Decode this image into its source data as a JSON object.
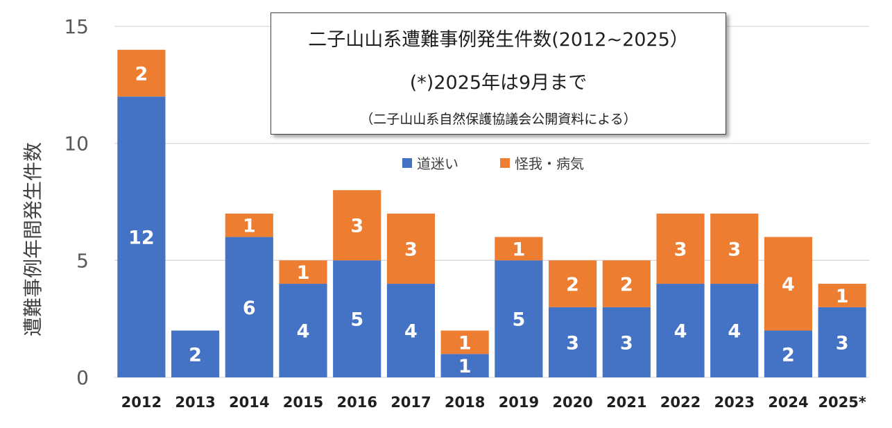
{
  "colors": {
    "walk_lost": "#4472c4",
    "injury_illness": "#ed7d31",
    "grid": "#d9d9d9"
  },
  "title_box": {
    "line1": "二子山山系遭難事例発生件数(2012~2025）",
    "line2": "(*)2025年は9月まで",
    "line3": "（二子山山系自然保護協議会公開資料による）"
  },
  "chart_data": {
    "type": "bar",
    "stacked": true,
    "categories": [
      "2012",
      "2013",
      "2014",
      "2015",
      "2016",
      "2017",
      "2018",
      "2019",
      "2020",
      "2021",
      "2022",
      "2023",
      "2024",
      "2025*"
    ],
    "series": [
      {
        "name": "道迷い",
        "values": [
          12,
          2,
          6,
          4,
          5,
          4,
          1,
          5,
          3,
          3,
          4,
          4,
          2,
          3
        ]
      },
      {
        "name": "怪我・病気",
        "values": [
          2,
          0,
          1,
          1,
          3,
          3,
          1,
          1,
          2,
          2,
          3,
          3,
          4,
          1
        ]
      }
    ],
    "ylabel": "遭難事例年間発生件数",
    "xlabel": "",
    "ylim": [
      0,
      15
    ],
    "yticks": [
      0,
      5,
      10,
      15
    ],
    "grid": true,
    "legend_position": "top-center"
  }
}
